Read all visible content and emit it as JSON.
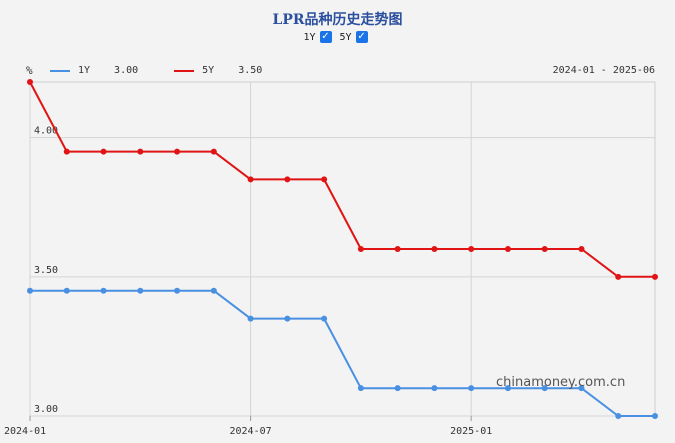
{
  "chart_data": {
    "type": "line",
    "title": "LPR品种历史走势图",
    "unit_label": "%",
    "date_range": "2024-01 - 2025-06",
    "toggles": [
      {
        "label": "1Y",
        "checked": true
      },
      {
        "label": "5Y",
        "checked": true
      }
    ],
    "x": [
      "2024-01",
      "2024-02",
      "2024-03",
      "2024-04",
      "2024-05",
      "2024-06",
      "2024-07",
      "2024-08",
      "2024-09",
      "2024-10",
      "2024-11",
      "2024-12",
      "2025-01",
      "2025-02",
      "2025-03",
      "2025-04",
      "2025-05",
      "2025-06"
    ],
    "x_tick_labels": [
      "2024-01",
      "2024-07",
      "2025-01"
    ],
    "x_tick_indices": [
      0,
      6,
      12
    ],
    "y_ticks": [
      "3.00",
      "3.50",
      "4.00"
    ],
    "y_tick_values": [
      3.0,
      3.5,
      4.0
    ],
    "ylim": [
      3.0,
      4.2
    ],
    "grid": true,
    "series": [
      {
        "name": "1Y",
        "latest": "3.00",
        "color": "#4a90e2",
        "values": [
          3.45,
          3.45,
          3.45,
          3.45,
          3.45,
          3.45,
          3.35,
          3.35,
          3.35,
          3.1,
          3.1,
          3.1,
          3.1,
          3.1,
          3.1,
          3.1,
          3.0,
          3.0
        ]
      },
      {
        "name": "5Y",
        "latest": "3.50",
        "color": "#e01414",
        "values": [
          4.2,
          3.95,
          3.95,
          3.95,
          3.95,
          3.95,
          3.85,
          3.85,
          3.85,
          3.6,
          3.6,
          3.6,
          3.6,
          3.6,
          3.6,
          3.6,
          3.5,
          3.5
        ]
      }
    ],
    "watermark": "chinamoney.com.cn"
  }
}
